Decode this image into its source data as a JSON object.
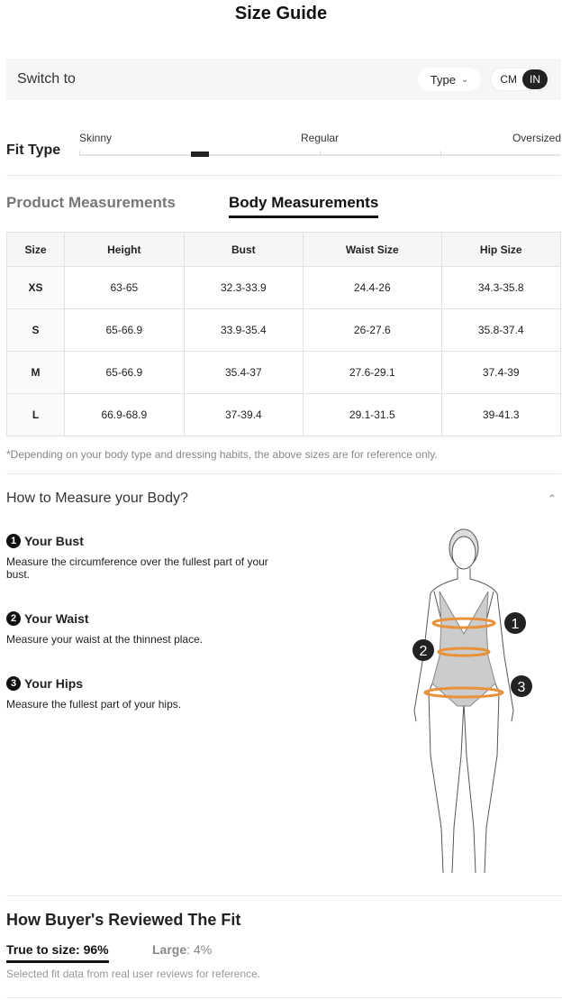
{
  "title": "Size Guide",
  "switch": {
    "label": "Switch to",
    "type_label": "Type",
    "units": [
      "CM",
      "IN"
    ],
    "selected_unit": "IN"
  },
  "fit": {
    "label": "Fit Type",
    "scale": [
      "Skinny",
      "Regular",
      "Oversized"
    ],
    "position_fraction": 0.25
  },
  "tabs": {
    "product": "Product Measurements",
    "body": "Body Measurements",
    "active": "Body Measurements"
  },
  "table": {
    "headers": [
      "Size",
      "Height",
      "Bust",
      "Waist Size",
      "Hip Size"
    ],
    "rows": [
      [
        "XS",
        "63-65",
        "32.3-33.9",
        "24.4-26",
        "34.3-35.8"
      ],
      [
        "S",
        "65-66.9",
        "33.9-35.4",
        "26-27.6",
        "35.8-37.4"
      ],
      [
        "M",
        "65-66.9",
        "35.4-37",
        "27.6-29.1",
        "37.4-39"
      ],
      [
        "L",
        "66.9-68.9",
        "37-39.4",
        "29.1-31.5",
        "39-41.3"
      ]
    ]
  },
  "note": "*Depending on your body type and dressing habits, the above sizes are for reference only.",
  "how": {
    "title": "How to Measure your Body?",
    "steps": [
      {
        "num": "1",
        "title": "Your Bust",
        "text": "Measure the circumference over the fullest part of your bust."
      },
      {
        "num": "2",
        "title": "Your Waist",
        "text": "Measure your waist at the thinnest place."
      },
      {
        "num": "3",
        "title": "Your Hips",
        "text": "Measure the fullest part of your hips."
      }
    ]
  },
  "figure": {
    "accent": "#e8913a"
  },
  "reviews": {
    "title": "How Buyer's Reviewed The Fit",
    "true_to_size": "True to size: 96%",
    "large_label": "Large",
    "large_value": ": 4%",
    "note": "Selected fit data from real user reviews for reference."
  }
}
